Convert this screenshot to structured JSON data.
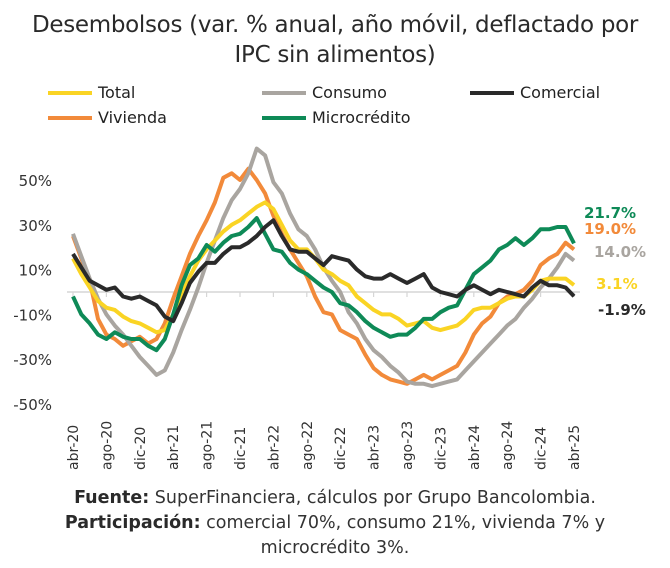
{
  "chart_data": {
    "type": "line",
    "title": "Desembolsos (var. % anual, año móvil, deflactado por IPC sin alimentos)",
    "title_lines": [
      "Desembolsos (var. % anual, año móvil, deflactado por",
      "IPC sin alimentos)"
    ],
    "ylim": [
      -50,
      50
    ],
    "yticks": [
      50,
      30,
      10,
      -10,
      -30,
      -50
    ],
    "ytick_labels": [
      "50%",
      "30%",
      "10%",
      "-10%",
      "-30%",
      "-50%"
    ],
    "xtick_labels": [
      "abr-20",
      "ago-20",
      "dic-20",
      "abr-21",
      "ago-21",
      "dic-21",
      "abr-22",
      "ago-22",
      "dic-22",
      "abr-23",
      "ago-23",
      "dic-23",
      "abr-24",
      "ago-24",
      "dic-24",
      "abr-25"
    ],
    "x": [
      "abr-20",
      "may-20",
      "jun-20",
      "jul-20",
      "ago-20",
      "sep-20",
      "oct-20",
      "nov-20",
      "dic-20",
      "ene-21",
      "feb-21",
      "mar-21",
      "abr-21",
      "may-21",
      "jun-21",
      "jul-21",
      "ago-21",
      "sep-21",
      "oct-21",
      "nov-21",
      "dic-21",
      "ene-22",
      "feb-22",
      "mar-22",
      "abr-22",
      "may-22",
      "jun-22",
      "jul-22",
      "ago-22",
      "sep-22",
      "oct-22",
      "nov-22",
      "dic-22",
      "ene-23",
      "feb-23",
      "mar-23",
      "abr-23",
      "may-23",
      "jun-23",
      "jul-23",
      "ago-23",
      "sep-23",
      "oct-23",
      "nov-23",
      "dic-23",
      "ene-24",
      "feb-24",
      "mar-24",
      "abr-24",
      "may-24",
      "jun-24",
      "jul-24",
      "ago-24",
      "sep-24",
      "oct-24",
      "nov-24",
      "dic-24",
      "ene-25",
      "feb-25",
      "mar-25",
      "abr-25"
    ],
    "grid": false,
    "legend_position": "top",
    "series": [
      {
        "name": "Vivienda",
        "color": "#F28A3A",
        "end_label": "19.0%",
        "values": [
          25,
          15,
          5,
          -12,
          -19,
          -21,
          -24,
          -22,
          -20,
          -23,
          -21,
          -14,
          -3,
          7,
          17,
          25,
          32,
          40,
          51,
          53,
          50,
          55,
          50,
          44,
          34,
          26,
          19,
          13,
          7,
          -2,
          -9,
          -10,
          -17,
          -19,
          -21,
          -28,
          -34,
          -37,
          -39,
          -40,
          -41,
          -39,
          -37,
          -39,
          -37,
          -35,
          -33,
          -27,
          -19,
          -14,
          -11,
          -5,
          -2,
          -1,
          1,
          5,
          12,
          15,
          17,
          22,
          19.0
        ]
      },
      {
        "name": "Consumo",
        "color": "#A9A5A0",
        "end_label": "14.0%",
        "values": [
          26,
          16,
          6,
          -3,
          -10,
          -15,
          -19,
          -24,
          -29,
          -33,
          -37,
          -35,
          -27,
          -17,
          -8,
          2,
          13,
          23,
          33,
          41,
          46,
          53,
          64,
          61,
          49,
          44,
          35,
          28,
          25,
          19,
          11,
          5,
          0,
          -9,
          -14,
          -21,
          -26,
          -29,
          -33,
          -36,
          -40,
          -41,
          -41,
          -42,
          -41,
          -40,
          -39,
          -35,
          -31,
          -27,
          -23,
          -19,
          -15,
          -12,
          -7,
          -3,
          2,
          6,
          11,
          17,
          14.0
        ]
      },
      {
        "name": "Total",
        "color": "#FAD424",
        "end_label": "3.1%",
        "values": [
          15,
          8,
          2,
          -4,
          -7,
          -8,
          -11,
          -13,
          -14,
          -16,
          -18,
          -17,
          -10,
          -1,
          7,
          14,
          19,
          23,
          27,
          30,
          32,
          35,
          38,
          40,
          37,
          30,
          23,
          19,
          19,
          15,
          10,
          8,
          5,
          3,
          -2,
          -5,
          -8,
          -10,
          -10,
          -12,
          -15,
          -14,
          -13,
          -16,
          -17,
          -16,
          -15,
          -12,
          -8,
          -7,
          -7,
          -5,
          -3,
          -2,
          -2,
          1,
          5,
          6,
          6,
          6,
          3.1
        ]
      },
      {
        "name": "Microcrédito",
        "color": "#0E8A57",
        "end_label": "21.7%",
        "values": [
          -2,
          -10,
          -14,
          -19,
          -21,
          -18,
          -20,
          -21,
          -21,
          -24,
          -26,
          -21,
          -10,
          3,
          12,
          15,
          21,
          18,
          22,
          25,
          26,
          29,
          33,
          26,
          19,
          18,
          13,
          10,
          8,
          5,
          2,
          0,
          -5,
          -6,
          -9,
          -13,
          -16,
          -18,
          -20,
          -19,
          -19,
          -16,
          -12,
          -12,
          -9,
          -7,
          -6,
          1,
          8,
          11,
          14,
          19,
          21,
          24,
          21,
          24,
          28,
          28,
          29,
          29,
          21.7
        ]
      },
      {
        "name": "Comercial",
        "color": "#2A2A2A",
        "end_label": "-1.9%",
        "values": [
          17,
          11,
          5,
          3,
          1,
          2,
          -2,
          -3,
          -2,
          -4,
          -6,
          -11,
          -13,
          -5,
          4,
          9,
          13,
          13,
          17,
          20,
          20,
          22,
          25,
          29,
          32,
          25,
          19,
          18,
          18,
          15,
          12,
          16,
          15,
          14,
          10,
          7,
          6,
          6,
          8,
          6,
          4,
          6,
          8,
          2,
          0,
          -1,
          -2,
          1,
          3,
          1,
          -1,
          1,
          0,
          -1,
          -2,
          2,
          5,
          3,
          3,
          2,
          -1.9
        ]
      }
    ],
    "legend_order": [
      "Total",
      "Consumo",
      "Comercial",
      "Vivienda",
      "Microcrédito"
    ]
  },
  "footer": {
    "source_label": "Fuente:",
    "source_text": " SuperFinanciera, cálculos por Grupo Bancolombia.",
    "share_label": "Participación:",
    "share_text": " comercial 70%, consumo 21%, vivienda 7% y",
    "share_text_2": "microcrédito 3%."
  }
}
